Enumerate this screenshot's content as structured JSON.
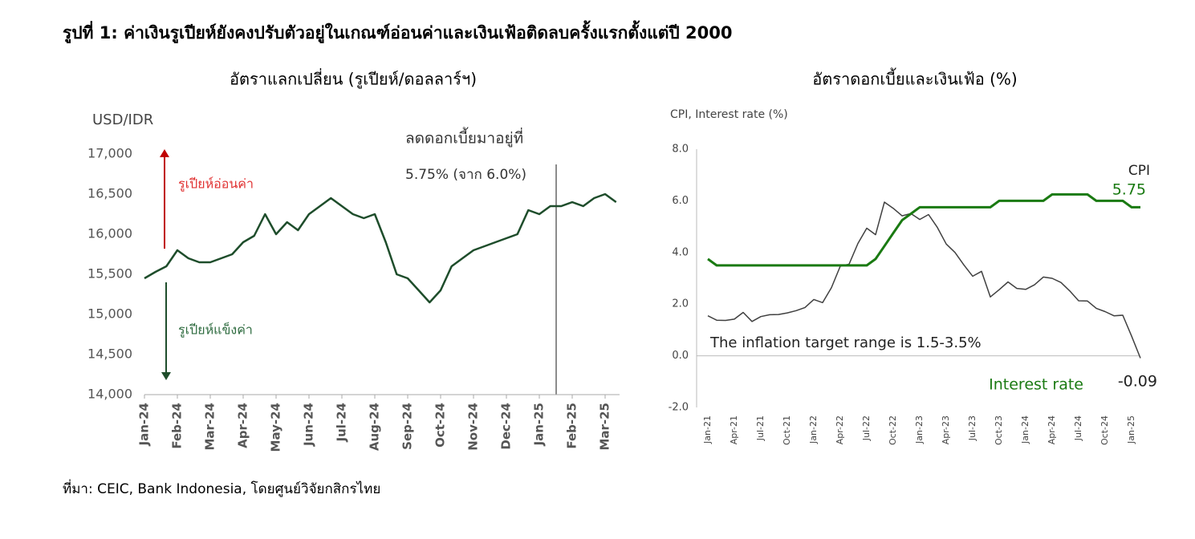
{
  "title": "รูปที่ 1: ค่าเงินรูเปียห์ยังคงปรับตัวอยู่ในเกณฑ์อ่อนค่าและเงินเฟ้อติดลบครั้งแรกตั้งแต่ปี 2000",
  "source": "ที่มา: CEIC, Bank Indonesia, โดยศูนย์วิจัยกสิกรไทย",
  "chart_data": [
    {
      "type": "line",
      "title": "อัตราแลกเปลี่ยน (รูเปียห์/ดอลลาร์ฯ)",
      "y_label": "USD/IDR",
      "categories": [
        "Jan-24",
        null,
        null,
        "Feb-24",
        null,
        null,
        "Mar-24",
        null,
        null,
        "Apr-24",
        null,
        null,
        "May-24",
        null,
        null,
        "Jun-24",
        null,
        null,
        "Jul-24",
        null,
        null,
        "Aug-24",
        null,
        null,
        "Sep-24",
        null,
        null,
        "Oct-24",
        null,
        null,
        "Nov-24",
        null,
        null,
        "Dec-24",
        null,
        null,
        "Jan-25",
        null,
        null,
        "Feb-25",
        null,
        null,
        "Mar-25",
        null
      ],
      "values": [
        15450,
        15530,
        15600,
        15800,
        15700,
        15650,
        15650,
        15700,
        15750,
        15900,
        15980,
        16250,
        16000,
        16150,
        16050,
        16250,
        16350,
        16450,
        16350,
        16250,
        16200,
        16250,
        15900,
        15500,
        15450,
        15300,
        15150,
        15300,
        15600,
        15700,
        15800,
        15850,
        15900,
        15950,
        16000,
        16300,
        16250,
        16350,
        16350,
        16400,
        16350,
        16450,
        16500,
        16400
      ],
      "color": "#1e4d2b",
      "ylim": [
        14000,
        17000
      ],
      "yticks": [
        {
          "value": 14000,
          "label": "14,000"
        },
        {
          "value": 14500,
          "label": "14,500"
        },
        {
          "value": 15000,
          "label": "15,000"
        },
        {
          "value": 15500,
          "label": "15,500"
        },
        {
          "value": 16000,
          "label": "16,000"
        },
        {
          "value": 16500,
          "label": "16,500"
        },
        {
          "value": 17000,
          "label": "17,000"
        }
      ],
      "annotations": [
        "ลดดอกเบี้ยมาอยู่ที่",
        "5.75% (จาก 6.0%)",
        "รูเปียห์อ่อนค่า",
        "รูเปียห์แข็งค่า"
      ]
    },
    {
      "type": "line",
      "title": "อัตราดอกเบี้ยและเงินเฟ้อ (%)",
      "y_label": "CPI, Interest rate (%)",
      "categories": [
        "Jan-21",
        null,
        null,
        "Apr-21",
        null,
        null,
        "Jul-21",
        null,
        null,
        "Oct-21",
        null,
        null,
        "Jan-22",
        null,
        null,
        "Apr-22",
        null,
        null,
        "Jul-22",
        null,
        null,
        "Oct-22",
        null,
        null,
        "Jan-23",
        null,
        null,
        "Apr-23",
        null,
        null,
        "Jul-23",
        null,
        null,
        "Oct-23",
        null,
        null,
        "Jan-24",
        null,
        null,
        "Apr-24",
        null,
        null,
        "Jul-24",
        null,
        null,
        "Oct-24",
        null,
        null,
        "Jan-25",
        null
      ],
      "series": [
        {
          "name": "CPI",
          "color": "#404040",
          "values": [
            1.55,
            1.38,
            1.37,
            1.42,
            1.68,
            1.33,
            1.52,
            1.59,
            1.6,
            1.66,
            1.75,
            1.87,
            2.18,
            2.06,
            2.64,
            3.47,
            3.55,
            4.35,
            4.94,
            4.69,
            5.95,
            5.71,
            5.42,
            5.51,
            5.28,
            5.47,
            4.97,
            4.33,
            4.0,
            3.52,
            3.08,
            3.27,
            2.28,
            2.56,
            2.86,
            2.61,
            2.57,
            2.75,
            3.05,
            3.0,
            2.84,
            2.51,
            2.13,
            2.12,
            1.84,
            1.71,
            1.55,
            1.57,
            0.76,
            -0.09
          ]
        },
        {
          "name": "Interest rate",
          "color": "#1a7a12",
          "values": [
            3.75,
            3.5,
            3.5,
            3.5,
            3.5,
            3.5,
            3.5,
            3.5,
            3.5,
            3.5,
            3.5,
            3.5,
            3.5,
            3.5,
            3.5,
            3.5,
            3.5,
            3.5,
            3.5,
            3.75,
            4.25,
            4.75,
            5.25,
            5.5,
            5.75,
            5.75,
            5.75,
            5.75,
            5.75,
            5.75,
            5.75,
            5.75,
            5.75,
            6.0,
            6.0,
            6.0,
            6.0,
            6.0,
            6.0,
            6.25,
            6.25,
            6.25,
            6.25,
            6.25,
            6.0,
            6.0,
            6.0,
            6.0,
            5.75,
            5.75
          ]
        }
      ],
      "ylim": [
        -2,
        8
      ],
      "yticks": [
        {
          "value": -2,
          "label": "-2.0"
        },
        {
          "value": 0,
          "label": "0.0"
        },
        {
          "value": 2,
          "label": "2.0"
        },
        {
          "value": 4,
          "label": "4.0"
        },
        {
          "value": 6,
          "label": "6.0"
        },
        {
          "value": 8,
          "label": "8.0"
        }
      ],
      "annotations": [
        "The inflation target range is 1.5-3.5%",
        "5.75",
        "-0.09"
      ]
    }
  ]
}
